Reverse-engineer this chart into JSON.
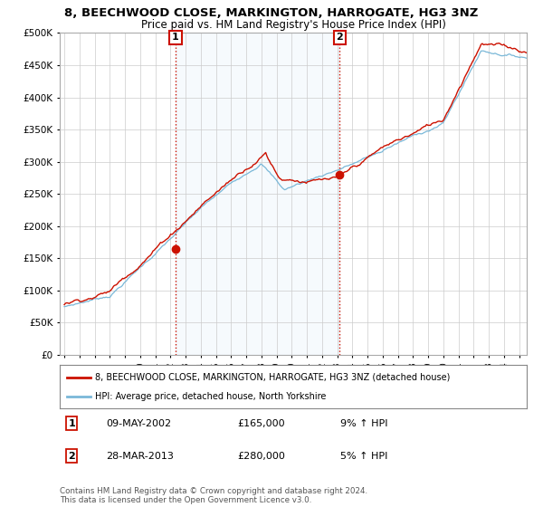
{
  "title": "8, BEECHWOOD CLOSE, MARKINGTON, HARROGATE, HG3 3NZ",
  "subtitle": "Price paid vs. HM Land Registry's House Price Index (HPI)",
  "ytick_values": [
    0,
    50000,
    100000,
    150000,
    200000,
    250000,
    300000,
    350000,
    400000,
    450000,
    500000
  ],
  "ylim": [
    0,
    500000
  ],
  "hpi_color": "#7ab8d8",
  "hpi_fill_color": "#d0e8f5",
  "price_color": "#cc1100",
  "marker_color": "#cc1100",
  "transaction1_date": "09-MAY-2002",
  "transaction1_price": 165000,
  "transaction1_pct": "9%",
  "transaction2_date": "28-MAR-2013",
  "transaction2_price": 280000,
  "transaction2_pct": "5%",
  "legend_label1": "8, BEECHWOOD CLOSE, MARKINGTON, HARROGATE, HG3 3NZ (detached house)",
  "legend_label2": "HPI: Average price, detached house, North Yorkshire",
  "footer": "Contains HM Land Registry data © Crown copyright and database right 2024.\nThis data is licensed under the Open Government Licence v3.0.",
  "background_color": "#ffffff",
  "grid_color": "#cccccc",
  "vline_color": "#cc1100",
  "annotation_box_color": "#cc1100"
}
